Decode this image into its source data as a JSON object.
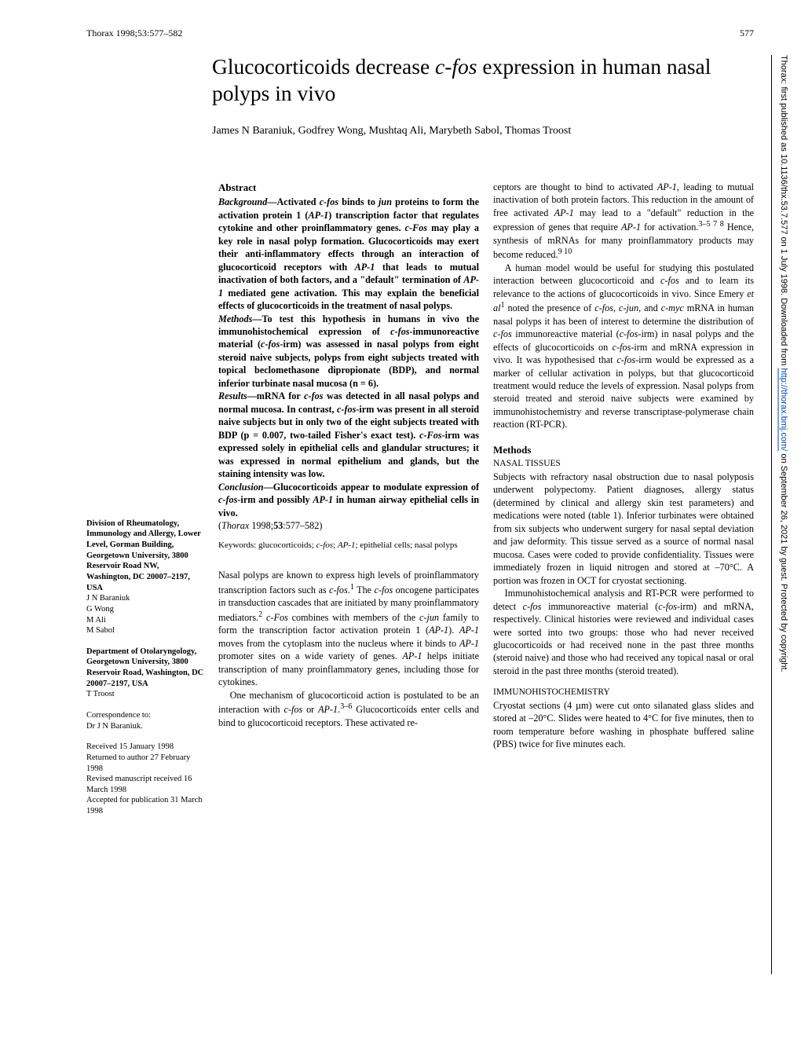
{
  "header": {
    "journal_line": "Thorax 1998;53:577–582",
    "page": "577"
  },
  "title": "Glucocorticoids decrease c-fos expression in human nasal polyps in vivo",
  "title_html": "Glucocorticoids decrease <i>c-fos</i> expression in human nasal polyps in vivo",
  "authors": "James N Baraniuk, Godfrey Wong, Mushtaq Ali, Marybeth Sabol, Thomas Troost",
  "sidebar": {
    "affil1_html": "<b>Division of Rheumatology, Immunology and Allergy, Lower Level, Gorman Building, Georgetown University, 3800 Reservoir Road NW, Washington, DC 20007–2197, USA</b><br>J N Baraniuk<br>G Wong<br>M Ali<br>M Sabol",
    "affil2_html": "<b>Department of Otolaryngology, Georgetown University, 3800 Reservoir Road, Washington, DC 20007–2197, USA</b><br>T Troost",
    "correspondence_html": "Correspondence to:<br>Dr J N Baraniuk.",
    "dates_html": "Received 15 January 1998<br>Returned to author 27 February 1998<br>Revised manuscript received 16 March 1998<br>Accepted for publication 31 March 1998"
  },
  "col1": {
    "abstract_head": "Abstract",
    "background_html": "<b><i>Background</i>—Activated <i>c-fos</i> binds to <i>jun</i> proteins to form the activation protein 1 (<i>AP-1</i>) transcription factor that regulates cytokine and other proinflammatory genes. <i>c-Fos</i> may play a key role in nasal polyp formation. Glucocorticoids may exert their anti-inflammatory effects through an interaction of glucocorticoid receptors with <i>AP-1</i> that leads to mutual inactivation of both factors, and a \"default\" termination of <i>AP-1</i> mediated gene activation. This may explain the beneficial effects of glucocorticoids in the treatment of nasal polyps.</b>",
    "methods_html": "<b><i>Methods</i>—To test this hypothesis in humans in vivo the immunohistochemical expression of <i>c-fos</i>-immunoreactive material (<i>c-fos</i>-irm) was assessed in nasal polyps from eight steroid naive subjects, polyps from eight subjects treated with topical beclomethasone dipropionate (BDP), and normal inferior turbinate nasal mucosa (n = 6).</b>",
    "results_html": "<b><i>Results</i>—mRNA for <i>c-fos</i> was detected in all nasal polyps and normal mucosa. In contrast, <i>c-fos</i>-irm was present in all steroid naive subjects but in only two of the eight subjects treated with BDP (p = 0.007, two-tailed Fisher's exact test). <i>c-Fos</i>-irm was expressed solely in epithelial cells and glandular structures; it was expressed in normal epithelium and glands, but the staining intensity was low.</b>",
    "conclusion_html": "<b><i>Conclusion</i>—Glucocorticoids appear to modulate expression of <i>c-fos</i>-irm and possibly <i>AP-1</i> in human airway epithelial cells in vivo.</b>",
    "citation_html": "(<i>Thorax</i> 1998;<b>53</b>:577–582)",
    "keywords_html": "Keywords: glucocorticoids; <i>c-fos</i>; <i>AP-1</i>; epithelial cells; nasal polyps",
    "intro1_html": "Nasal polyps are known to express high levels of proinflammatory transcription factors such as <i>c-fos</i>.<sup>1</sup> The <i>c-fos</i> oncogene participates in transduction cascades that are initiated by many proinflammatory mediators.<sup>2</sup> <i>c-Fos</i> combines with members of the <i>c-jun</i> family to form the transcription factor activation protein 1 (<i>AP-1</i>). <i>AP-1</i> moves from the cytoplasm into the nucleus where it binds to <i>AP-1</i> promoter sites on a wide variety of genes. <i>AP-1</i> helps initiate transcription of many proinflammatory genes, including those for cytokines.",
    "intro2_html": "One mechanism of glucocorticoid action is postulated to be an interaction with <i>c-fos</i> or <i>AP-1</i>.<sup>3–6</sup> Glucocorticoids enter cells and bind to glucocorticoid receptors. These activated re-"
  },
  "col2": {
    "p1_html": "ceptors are thought to bind to activated <i>AP-1</i>, leading to mutual inactivation of both protein factors. This reduction in the amount of free activated <i>AP-1</i> may lead to a \"default\" reduction in the expression of genes that require <i>AP-1</i> for activation.<sup>3–5 7 8</sup> Hence, synthesis of mRNAs for many proinflammatory products may become reduced.<sup>9 10</sup>",
    "p2_html": "A human model would be useful for studying this postulated interaction between glucocorticoid and <i>c-fos</i> and to learn its relevance to the actions of glucocorticoids in vivo. Since Emery <i>et al</i><sup>1</sup> noted the presence of <i>c-fos</i>, <i>c-jun</i>, and <i>c-myc</i> mRNA in human nasal polyps it has been of interest to determine the distribution of <i>c-fos</i> immunoreactive material (<i>c-fos</i>-irm) in nasal polyps and the effects of glucocorticoids on <i>c-fos</i>-irm and mRNA expression in vivo. It was hypothesised that <i>c-fos</i>-irm would be expressed as a marker of cellular activation in polyps, but that glucocorticoid treatment would reduce the levels of expression. Nasal polyps from steroid treated and steroid naive subjects were examined by immunohistochemistry and reverse transcriptase-polymerase chain reaction (RT-PCR).",
    "methods_head": "Methods",
    "nasal_tissues": "NASAL TISSUES",
    "p3_html": "Subjects with refractory nasal obstruction due to nasal polyposis underwent polypectomy. Patient diagnoses, allergy status (determined by clinical and allergy skin test parameters) and medications were noted (table 1). Inferior turbinates were obtained from six subjects who underwent surgery for nasal septal deviation and jaw deformity. This tissue served as a source of normal nasal mucosa. Cases were coded to provide confidentiality. Tissues were immediately frozen in liquid nitrogen and stored at –70°C. A portion was frozen in OCT for cryostat sectioning.",
    "p4_html": "Immunohistochemical analysis and RT-PCR were performed to detect <i>c-fos</i> immunoreactive material (<i>c-fos</i>-irm) and mRNA, respectively. Clinical histories were reviewed and individual cases were sorted into two groups: those who had never received glucocorticoids or had received none in the past three months (steroid naive) and those who had received any topical nasal or oral steroid in the past three months (steroid treated).",
    "immuno_head": "IMMUNOHISTOCHEMISTRY",
    "p5_html": "Cryostat sections (4 µm) were cut onto silanated glass slides and stored at –20°C. Slides were heated to 4°C for five minutes, then to room temperature before washing in phosphate buffered saline (PBS) twice for five minutes each."
  },
  "watermark_html": "Thorax: first published as 10.1136/thx.53.7.577 on 1 July 1998. Downloaded from <a>http://thorax.bmj.com/</a> on September 26, 2021 by guest. Protected by copyright."
}
